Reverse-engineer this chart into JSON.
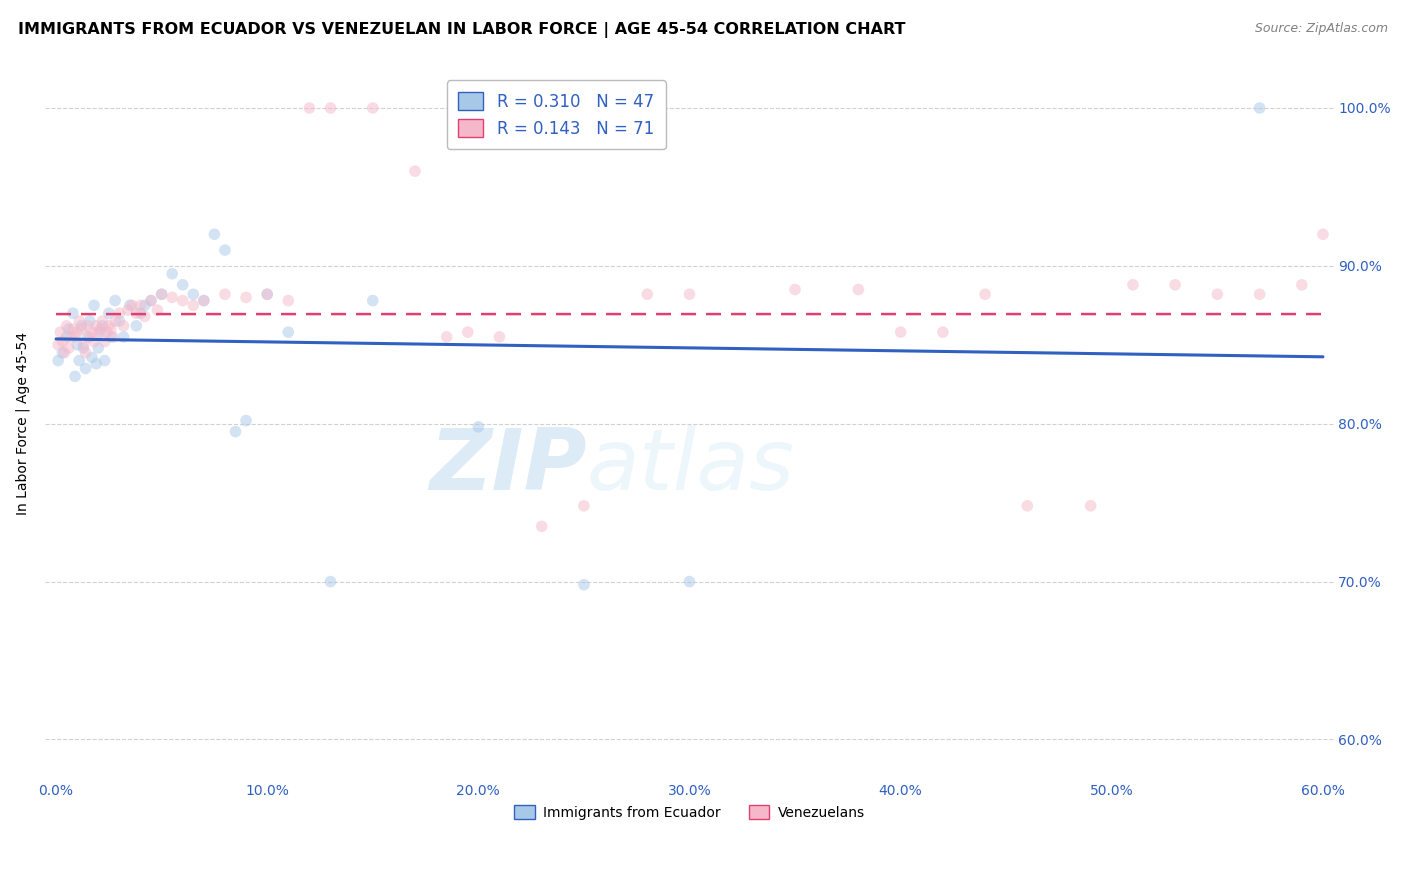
{
  "title": "IMMIGRANTS FROM ECUADOR VS VENEZUELAN IN LABOR FORCE | AGE 45-54 CORRELATION CHART",
  "source": "Source: ZipAtlas.com",
  "ylabel": "In Labor Force | Age 45-54",
  "xlabel_ticks": [
    "0.0%",
    "10.0%",
    "20.0%",
    "30.0%",
    "40.0%",
    "50.0%",
    "60.0%"
  ],
  "xlabel_vals": [
    0.0,
    0.1,
    0.2,
    0.3,
    0.4,
    0.5,
    0.6
  ],
  "ytick_labels": [
    "60.0%",
    "70.0%",
    "80.0%",
    "90.0%",
    "100.0%"
  ],
  "ytick_vals": [
    0.6,
    0.7,
    0.8,
    0.9,
    1.0
  ],
  "xlim": [
    -0.005,
    0.605
  ],
  "ylim": [
    0.575,
    1.025
  ],
  "ecuador_R": 0.31,
  "ecuador_N": 47,
  "venezuela_R": 0.143,
  "venezuela_N": 71,
  "ecuador_color": "#a8c8e8",
  "venezuela_color": "#f5b8ca",
  "ecuador_line_color": "#3060c0",
  "venezuela_line_color": "#e04070",
  "ecuador_x": [
    0.001,
    0.003,
    0.005,
    0.006,
    0.008,
    0.009,
    0.01,
    0.011,
    0.012,
    0.013,
    0.014,
    0.015,
    0.016,
    0.017,
    0.018,
    0.019,
    0.02,
    0.021,
    0.022,
    0.023,
    0.025,
    0.026,
    0.028,
    0.03,
    0.032,
    0.035,
    0.038,
    0.04,
    0.042,
    0.045,
    0.05,
    0.055,
    0.06,
    0.065,
    0.07,
    0.075,
    0.08,
    0.085,
    0.09,
    0.1,
    0.11,
    0.13,
    0.15,
    0.2,
    0.25,
    0.3,
    0.57
  ],
  "ecuador_y": [
    0.84,
    0.845,
    0.855,
    0.86,
    0.87,
    0.83,
    0.85,
    0.84,
    0.862,
    0.848,
    0.835,
    0.855,
    0.865,
    0.842,
    0.875,
    0.838,
    0.848,
    0.858,
    0.862,
    0.84,
    0.87,
    0.855,
    0.878,
    0.865,
    0.855,
    0.875,
    0.862,
    0.87,
    0.875,
    0.878,
    0.882,
    0.895,
    0.888,
    0.882,
    0.878,
    0.92,
    0.91,
    0.795,
    0.802,
    0.882,
    0.858,
    0.7,
    0.878,
    0.798,
    0.698,
    0.7,
    1.0
  ],
  "venezuela_x": [
    0.001,
    0.002,
    0.003,
    0.004,
    0.005,
    0.006,
    0.007,
    0.008,
    0.009,
    0.01,
    0.011,
    0.012,
    0.013,
    0.014,
    0.015,
    0.016,
    0.017,
    0.018,
    0.019,
    0.02,
    0.021,
    0.022,
    0.023,
    0.024,
    0.025,
    0.026,
    0.027,
    0.028,
    0.03,
    0.032,
    0.034,
    0.036,
    0.038,
    0.04,
    0.042,
    0.045,
    0.048,
    0.05,
    0.055,
    0.06,
    0.065,
    0.07,
    0.08,
    0.09,
    0.1,
    0.11,
    0.12,
    0.13,
    0.15,
    0.17,
    0.185,
    0.19,
    0.195,
    0.21,
    0.23,
    0.25,
    0.28,
    0.3,
    0.35,
    0.38,
    0.4,
    0.42,
    0.44,
    0.46,
    0.49,
    0.51,
    0.53,
    0.55,
    0.57,
    0.59,
    0.6
  ],
  "venezuela_y": [
    0.85,
    0.858,
    0.852,
    0.845,
    0.862,
    0.848,
    0.855,
    0.86,
    0.855,
    0.858,
    0.865,
    0.86,
    0.85,
    0.845,
    0.862,
    0.855,
    0.858,
    0.852,
    0.862,
    0.858,
    0.86,
    0.865,
    0.852,
    0.858,
    0.862,
    0.86,
    0.855,
    0.865,
    0.87,
    0.862,
    0.872,
    0.875,
    0.87,
    0.875,
    0.868,
    0.878,
    0.872,
    0.882,
    0.88,
    0.878,
    0.875,
    0.878,
    0.882,
    0.88,
    0.882,
    0.878,
    1.0,
    1.0,
    1.0,
    0.96,
    0.855,
    1.0,
    0.858,
    0.855,
    0.735,
    0.748,
    0.882,
    0.882,
    0.885,
    0.885,
    0.858,
    0.858,
    0.882,
    0.748,
    0.748,
    0.888,
    0.888,
    0.882,
    0.882,
    0.888,
    0.92
  ],
  "legend_blue_label_r": "R = 0.310",
  "legend_blue_label_n": "N = 47",
  "legend_pink_label_r": "R = 0.143",
  "legend_pink_label_n": "N = 71",
  "bottom_legend_ecuador": "Immigrants from Ecuador",
  "bottom_legend_venezuela": "Venezuelans",
  "watermark_zip": "ZIP",
  "watermark_atlas": "atlas",
  "background_color": "#ffffff",
  "grid_color": "#cccccc",
  "title_fontsize": 11.5,
  "source_fontsize": 9,
  "axis_label_fontsize": 10,
  "tick_fontsize": 9,
  "marker_size": 70,
  "marker_alpha": 0.5
}
